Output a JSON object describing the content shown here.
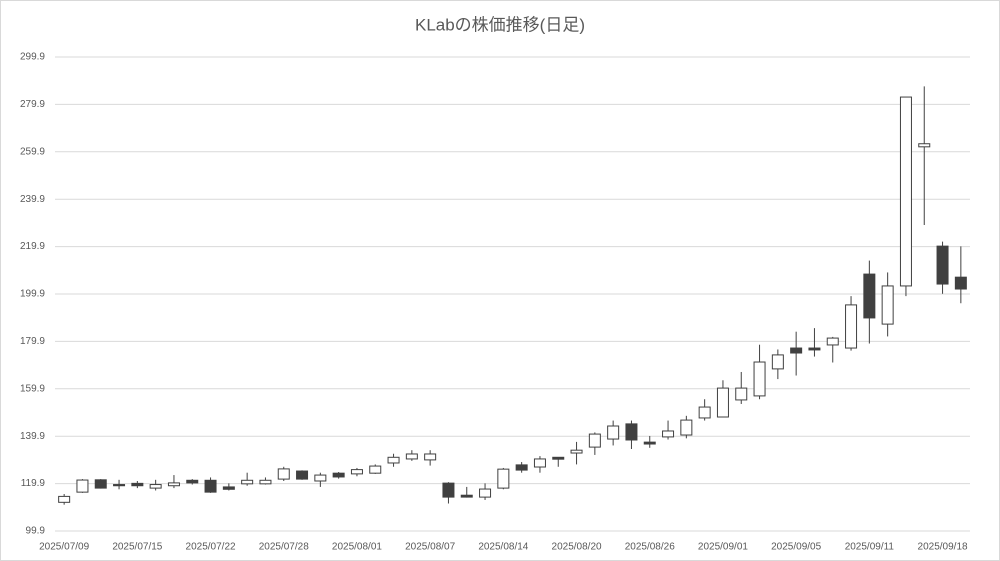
{
  "chart_data": {
    "type": "candlestick",
    "title": "KLabの株価推移(日足)",
    "categories": [
      "2025/07/09",
      null,
      null,
      null,
      "2025/07/15",
      null,
      null,
      null,
      "2025/07/22",
      null,
      null,
      null,
      "2025/07/28",
      null,
      null,
      null,
      "2025/08/01",
      null,
      null,
      null,
      "2025/08/07",
      null,
      null,
      null,
      "2025/08/14",
      null,
      null,
      null,
      "2025/08/20",
      null,
      null,
      null,
      "2025/08/26",
      null,
      null,
      null,
      "2025/09/01",
      null,
      null,
      null,
      "2025/09/05",
      null,
      null,
      null,
      "2025/09/11",
      null,
      null,
      null,
      "2025/09/18",
      null
    ],
    "open": [
      112,
      116.3,
      121.5,
      119.5,
      120,
      118,
      119,
      121.3,
      121.3,
      118.5,
      119.8,
      119.8,
      121.8,
      125.2,
      121,
      124.3,
      124,
      124.3,
      128.6,
      130.3,
      129.9,
      120.1,
      115,
      114.2,
      118,
      127.8,
      126.9,
      131,
      132.8,
      135.3,
      138.7,
      145.1,
      137.4,
      139.6,
      140.4,
      147.6,
      148,
      155.2,
      156.9,
      168.3,
      177.1,
      177.1,
      178.4,
      177.1,
      208.3,
      187.2,
      203.3,
      262,
      220.1,
      207
    ],
    "high": [
      115.5,
      121.8,
      121.8,
      121.5,
      121,
      121.5,
      123.5,
      121.8,
      122.5,
      120,
      124.5,
      122.5,
      127,
      125.5,
      124.5,
      124.8,
      126.5,
      128,
      132.5,
      134,
      134,
      120.5,
      118.5,
      120,
      126.5,
      129,
      131.5,
      131,
      137.5,
      141.5,
      146.5,
      146.5,
      140,
      146.5,
      148.5,
      155.5,
      163.5,
      167,
      178.5,
      176.5,
      184,
      185.5,
      181.8,
      199,
      214,
      209,
      283,
      287.5,
      222,
      220
    ],
    "low": [
      111,
      116,
      117.8,
      117.5,
      118,
      117,
      118,
      119.5,
      116,
      117,
      119,
      119.5,
      121,
      121.5,
      118.5,
      122,
      123,
      124,
      127,
      129.5,
      127.5,
      111.5,
      114,
      113,
      117.5,
      124.5,
      124.5,
      127,
      128,
      132,
      136,
      134.5,
      135,
      138.5,
      139,
      146.5,
      148,
      153.5,
      155.5,
      164,
      165.5,
      173.5,
      171,
      176,
      179,
      182,
      199,
      229,
      200,
      196
    ],
    "close": [
      114.5,
      121.4,
      118,
      119,
      119,
      119.5,
      120.2,
      120.2,
      116.3,
      117.5,
      121.3,
      121.3,
      126.1,
      121.8,
      123.5,
      122.7,
      125.8,
      127.3,
      131,
      132.4,
      132.4,
      114.2,
      114.2,
      117.6,
      126,
      125.6,
      130.3,
      130.2,
      134,
      140.8,
      144.2,
      138.3,
      136.6,
      142.1,
      146.7,
      152.2,
      160.2,
      160.2,
      171.2,
      174.2,
      175,
      176.3,
      181.3,
      195.3,
      189.8,
      203.3,
      283,
      263.3,
      204.1,
      202
    ],
    "up_color": "#ffffff",
    "down_color": "#404040",
    "line_color": "#404040",
    "ylim": [
      99.9,
      299.9
    ],
    "yticks": [
      99.9,
      119.9,
      139.9,
      159.9,
      179.9,
      199.9,
      219.9,
      239.9,
      259.9,
      279.9,
      299.9
    ],
    "grid": true
  }
}
